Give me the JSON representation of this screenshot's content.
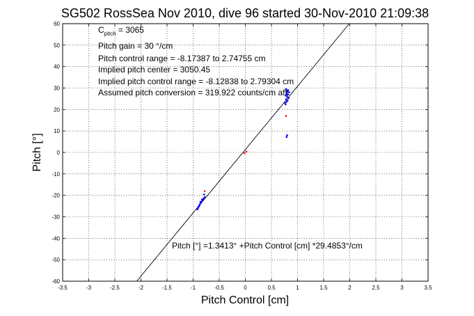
{
  "chart_data": {
    "type": "scatter",
    "title": "SG502 RossSea Nov 2010, dive 96 started 30-Nov-2010 21:09:38",
    "xlabel": "Pitch Control [cm]",
    "ylabel": "Pitch [°]",
    "xlim": [
      -3.5,
      3.5
    ],
    "ylim": [
      -60,
      60
    ],
    "xticks": [
      "-3.5",
      "-3",
      "-2.5",
      "-2",
      "-1.5",
      "-1",
      "-0.5",
      "0",
      "0.5",
      "1",
      "1.5",
      "2",
      "2.5",
      "3",
      "3.5"
    ],
    "yticks": [
      "60",
      "50",
      "40",
      "30",
      "20",
      "10",
      "0",
      "-10",
      "-20",
      "-30",
      "-40",
      "-50",
      "-60"
    ],
    "grid": true,
    "annotations": {
      "c_pitch_main": "C",
      "c_pitch_sub": "pitch",
      "c_pitch_value": " = 3065",
      "line2": "Pitch gain = 30 °/cm",
      "line3": "Pitch control range = -8.17387 to 2.74755 cm",
      "line4": "Implied pitch center = 3050.45",
      "line5": "Implied pitch control range = -8.12838 to 2.79304 cm",
      "line6": "Assumed pitch conversion = 319.922 counts/cm aft"
    },
    "fit_label": "Pitch [°] =1.3413° +Pitch Control [cm] *29.4853°/cm",
    "fit": {
      "intercept": 1.3413,
      "slope": 29.4853
    },
    "colors": {
      "data": "#0000ff",
      "outlier": "#ff0000",
      "fit": "#000000"
    },
    "series": [
      {
        "color": "#0000ff",
        "points": [
          [
            0.78,
            29.5
          ],
          [
            0.8,
            28.8
          ],
          [
            0.81,
            28.2
          ],
          [
            0.79,
            27.6
          ],
          [
            0.82,
            27.0
          ],
          [
            0.77,
            26.5
          ],
          [
            0.8,
            25.9
          ],
          [
            0.83,
            25.3
          ],
          [
            0.78,
            24.8
          ],
          [
            0.81,
            24.2
          ],
          [
            0.79,
            23.6
          ],
          [
            0.76,
            23.0
          ],
          [
            0.82,
            29.0
          ],
          [
            0.84,
            28.0
          ],
          [
            0.8,
            26.8
          ],
          [
            0.77,
            22.4
          ],
          [
            0.8,
            8.0
          ],
          [
            0.79,
            7.2
          ],
          [
            -0.78,
            -20.8
          ],
          [
            -0.8,
            -21.5
          ],
          [
            -0.82,
            -22.2
          ],
          [
            -0.84,
            -22.9
          ],
          [
            -0.85,
            -23.5
          ],
          [
            -0.87,
            -24.1
          ],
          [
            -0.88,
            -24.8
          ],
          [
            -0.9,
            -25.4
          ],
          [
            -0.91,
            -26.0
          ],
          [
            -0.83,
            -21.9
          ],
          [
            -0.86,
            -23.1
          ],
          [
            -0.89,
            -25.0
          ],
          [
            -0.79,
            -19.6
          ],
          [
            -0.92,
            -26.5
          ]
        ]
      },
      {
        "color": "#ff0000",
        "points": [
          [
            0.02,
            0.4
          ],
          [
            -0.02,
            -0.3
          ],
          [
            0.78,
            17.0
          ],
          [
            -0.78,
            -18.0
          ]
        ]
      }
    ]
  }
}
